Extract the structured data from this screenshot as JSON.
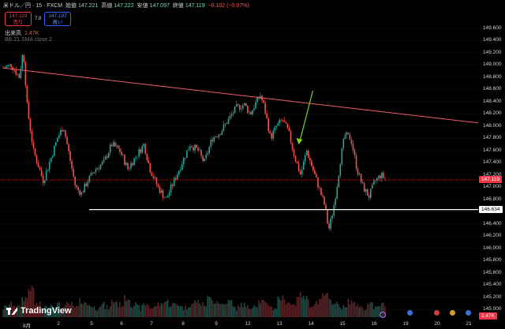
{
  "header": {
    "symbol": "米ドル／円 · 15 · FXCM",
    "open_label": "始値",
    "open": "147.221",
    "high_label": "高値",
    "high": "147.222",
    "low_label": "安値",
    "low": "147.097",
    "close_label": "終値",
    "close": "147.119",
    "change": "−0.102 (−0.07%)"
  },
  "trade": {
    "sell_price": "147.119",
    "sell_label": "売り",
    "spread": "7.8",
    "buy_price": "147.197",
    "buy_label": "買い"
  },
  "volume": {
    "label": "出来高",
    "value": "1.47K"
  },
  "indicator": {
    "label": "BB 21 SMA close 2"
  },
  "branding": {
    "logo_text": "TradingView"
  },
  "price_axis": {
    "labels": [
      "149.600",
      "149.400",
      "149.200",
      "149.000",
      "148.800",
      "148.600",
      "148.400",
      "148.200",
      "148.000",
      "147.800",
      "147.600",
      "147.400",
      "147.200",
      "147.000",
      "146.800",
      "146.600",
      "146.400",
      "146.200",
      "146.000",
      "145.800",
      "145.600",
      "145.400",
      "145.200",
      "145.000"
    ],
    "current_price_tag": "147.119",
    "horizontal_line_tag": "146.634",
    "volume_tag": "1.47K"
  },
  "time_axis": {
    "labels": [
      "8月",
      "2",
      "5",
      "6",
      "7",
      "8",
      "9",
      "12",
      "13",
      "14",
      "15",
      "16",
      "19",
      "20",
      "21"
    ]
  },
  "chart_data": {
    "type": "candlestick",
    "symbol": "USD/JPY",
    "interval": "15",
    "y_range": [
      144.9,
      149.7
    ],
    "price_path": [
      [
        0,
        148.95
      ],
      [
        0.4,
        149.0
      ],
      [
        0.8,
        148.8
      ],
      [
        1.0,
        149.25
      ],
      [
        1.2,
        148.3
      ],
      [
        1.5,
        147.6
      ],
      [
        1.7,
        147.4
      ],
      [
        2.0,
        147.1
      ],
      [
        2.4,
        147.5
      ],
      [
        2.7,
        147.8
      ],
      [
        3.0,
        148.0
      ],
      [
        3.3,
        147.5
      ],
      [
        3.6,
        147.0
      ],
      [
        3.9,
        146.9
      ],
      [
        4.2,
        147.1
      ],
      [
        4.6,
        147.3
      ],
      [
        5.0,
        147.4
      ],
      [
        5.4,
        147.7
      ],
      [
        5.8,
        147.6
      ],
      [
        6.2,
        147.3
      ],
      [
        6.6,
        147.5
      ],
      [
        7.0,
        147.7
      ],
      [
        7.3,
        147.3
      ],
      [
        7.7,
        147.0
      ],
      [
        8.1,
        146.8
      ],
      [
        8.5,
        147.1
      ],
      [
        8.9,
        147.4
      ],
      [
        9.3,
        147.7
      ],
      [
        9.7,
        147.6
      ],
      [
        10.0,
        147.4
      ],
      [
        10.4,
        147.8
      ],
      [
        10.8,
        147.9
      ],
      [
        11.2,
        148.1
      ],
      [
        11.6,
        148.3
      ],
      [
        12.0,
        148.35
      ],
      [
        12.3,
        148.2
      ],
      [
        12.6,
        148.4
      ],
      [
        12.8,
        148.5
      ],
      [
        13.0,
        148.3
      ],
      [
        13.3,
        147.8
      ],
      [
        13.6,
        148.0
      ],
      [
        13.9,
        148.1
      ],
      [
        14.2,
        147.9
      ],
      [
        14.5,
        147.5
      ],
      [
        14.8,
        147.2
      ],
      [
        15.1,
        147.6
      ],
      [
        15.4,
        147.3
      ],
      [
        15.7,
        147.0
      ],
      [
        16.0,
        146.7
      ],
      [
        16.2,
        146.3
      ],
      [
        16.4,
        146.6
      ],
      [
        16.6,
        147.0
      ],
      [
        16.8,
        147.5
      ],
      [
        17.0,
        147.85
      ],
      [
        17.3,
        147.8
      ],
      [
        17.6,
        147.3
      ],
      [
        17.9,
        147.0
      ],
      [
        18.2,
        146.85
      ],
      [
        18.5,
        147.1
      ],
      [
        18.8,
        147.2
      ],
      [
        19.0,
        147.15
      ]
    ],
    "volume_profile": [
      2,
      3,
      2,
      5,
      8,
      3,
      2,
      3,
      3,
      2,
      3,
      2,
      4,
      3,
      2,
      3,
      2,
      4,
      3,
      5,
      3,
      2,
      3,
      2,
      3,
      4,
      3,
      3,
      2,
      3,
      4,
      3,
      5,
      4,
      3,
      4,
      2,
      3,
      2,
      3,
      4,
      3,
      2,
      5,
      4,
      3,
      6,
      5,
      3,
      4,
      6,
      4,
      3,
      2,
      4,
      3,
      2,
      3,
      2,
      3
    ],
    "trendline": {
      "start": {
        "time_index": 0,
        "price": 148.95
      },
      "end": {
        "time_index": 25,
        "price": 148.0
      },
      "color": "#f05b6b"
    },
    "horizontal_line": {
      "price": 146.634,
      "color": "#ffffff"
    },
    "current_price_line": {
      "price": 147.119,
      "color": "#f23645"
    },
    "annotation": {
      "type": "arrow",
      "color": "#7ed321",
      "target_time_index": 14.7,
      "target_price": 147.7
    },
    "colors": {
      "up": "#26a69a",
      "down": "#ef5350",
      "background": "#000000"
    }
  }
}
